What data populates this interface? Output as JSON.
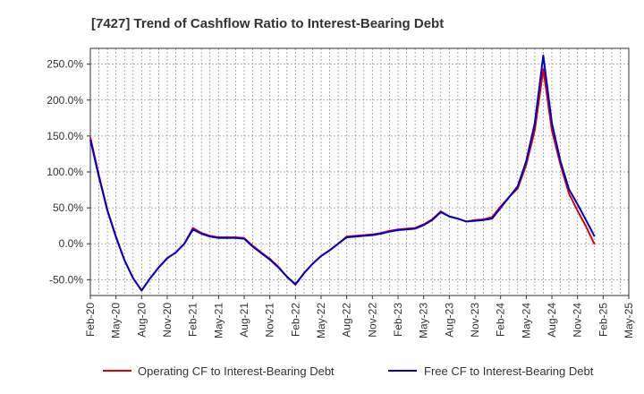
{
  "chart_data": {
    "type": "line",
    "title": "[7427]  Trend of Cashflow Ratio to Interest-Bearing Debt",
    "xlabel": "",
    "ylabel": "",
    "x_ticks": [
      "Feb-20",
      "May-20",
      "Aug-20",
      "Nov-20",
      "Feb-21",
      "May-21",
      "Aug-21",
      "Nov-21",
      "Feb-22",
      "May-22",
      "Aug-22",
      "Nov-22",
      "Feb-23",
      "May-23",
      "Aug-23",
      "Nov-23",
      "Feb-24",
      "May-24",
      "Aug-24",
      "Nov-24",
      "Feb-25",
      "May-25"
    ],
    "y_ticks": [
      "-50.0%",
      "0.0%",
      "50.0%",
      "100.0%",
      "150.0%",
      "200.0%",
      "250.0%"
    ],
    "y_tick_values": [
      -50,
      0,
      50,
      100,
      150,
      200,
      250
    ],
    "ylim": [
      -72,
      272
    ],
    "xlim": [
      0,
      63
    ],
    "grid": true,
    "legend_position": "bottom",
    "series": [
      {
        "name": "Operating CF to Interest-Bearing Debt",
        "color": "#dd0000",
        "x": [
          0,
          1,
          2,
          3,
          4,
          5,
          6,
          7,
          8,
          9,
          10,
          11,
          12,
          13,
          14,
          15,
          16,
          17,
          18,
          19,
          20,
          21,
          22,
          23,
          24,
          25,
          26,
          27,
          28,
          29,
          30,
          31,
          32,
          33,
          34,
          35,
          36,
          37,
          38,
          39,
          40,
          41,
          42,
          43,
          44,
          45,
          46,
          47,
          48,
          49,
          50,
          51,
          52,
          53,
          54,
          55,
          56,
          57,
          58,
          59,
          60
        ],
        "values": [
          148,
          95,
          47,
          10,
          -23,
          -48,
          -65,
          -48,
          -33,
          -20,
          -12,
          0,
          22,
          15,
          11,
          9,
          9,
          9,
          8,
          -3,
          -12,
          -21,
          -32,
          -46,
          -57,
          -41,
          -28,
          -17,
          -9,
          0,
          10,
          11,
          12,
          13,
          15,
          18,
          20,
          21,
          22,
          27,
          34,
          45,
          38,
          35,
          31,
          33,
          34,
          37,
          52,
          65,
          77,
          110,
          158,
          243,
          158,
          110,
          70,
          46,
          24,
          -1,
          -1
        ],
        "drawn_points": 60
      },
      {
        "name": "Free CF to Interest-Bearing Debt",
        "color": "#0000cc",
        "x": [
          0,
          1,
          2,
          3,
          4,
          5,
          6,
          7,
          8,
          9,
          10,
          11,
          12,
          13,
          14,
          15,
          16,
          17,
          18,
          19,
          20,
          21,
          22,
          23,
          24,
          25,
          26,
          27,
          28,
          29,
          30,
          31,
          32,
          33,
          34,
          35,
          36,
          37,
          38,
          39,
          40,
          41,
          42,
          43,
          44,
          45,
          46,
          47,
          48,
          49,
          50,
          51,
          52,
          53,
          54,
          55,
          56,
          57,
          58,
          59,
          60
        ],
        "values": [
          145,
          93,
          46,
          9,
          -23,
          -48,
          -65,
          -48,
          -33,
          -20,
          -12,
          0,
          20,
          14,
          10,
          8,
          8,
          8,
          7,
          -4,
          -13,
          -22,
          -33,
          -46,
          -56,
          -41,
          -28,
          -17,
          -9,
          0,
          9,
          10,
          11,
          12,
          14,
          17,
          19,
          20,
          21,
          26,
          33,
          44,
          38,
          35,
          31,
          32,
          33,
          35,
          50,
          65,
          80,
          115,
          168,
          262,
          168,
          115,
          76,
          55,
          33,
          10,
          10
        ],
        "drawn_points": 60
      }
    ]
  }
}
